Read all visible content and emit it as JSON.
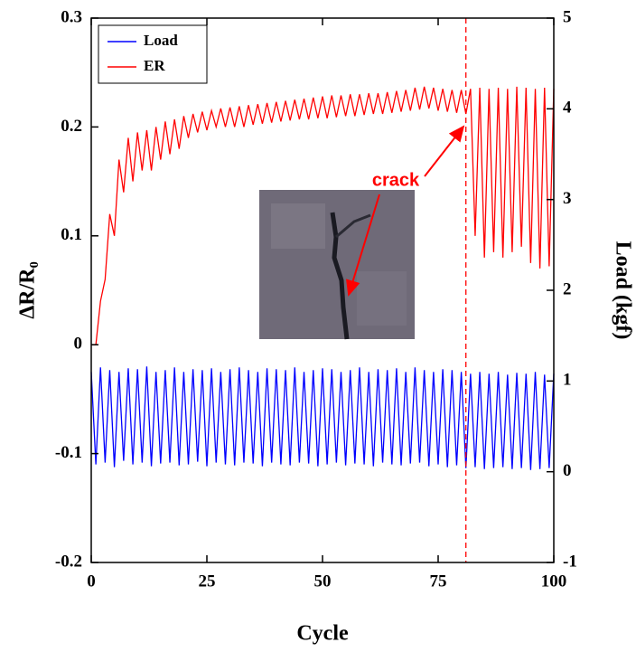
{
  "chart_data": {
    "type": "line",
    "xlabel": "Cycle",
    "ylabel": "ΔR/R₀",
    "y2label": "Load (kgf)",
    "xlim": [
      0,
      100
    ],
    "xticks": [
      0,
      25,
      50,
      75,
      100
    ],
    "ylim": [
      -0.2,
      0.3
    ],
    "yticks": [
      0.3,
      0.2,
      0.1,
      0,
      -0.1,
      -0.2
    ],
    "y2lim": [
      -1,
      5
    ],
    "y2ticks": [
      5,
      4,
      3,
      2,
      1,
      0,
      -1
    ],
    "legend": "upper left",
    "annotation": "crack",
    "crack_cycle": 81,
    "x": [
      0,
      1,
      2,
      3,
      4,
      5,
      6,
      7,
      8,
      9,
      10,
      11,
      12,
      13,
      14,
      15,
      16,
      17,
      18,
      19,
      20,
      21,
      22,
      23,
      24,
      25,
      26,
      27,
      28,
      29,
      30,
      31,
      32,
      33,
      34,
      35,
      36,
      37,
      38,
      39,
      40,
      41,
      42,
      43,
      44,
      45,
      46,
      47,
      48,
      49,
      50,
      51,
      52,
      53,
      54,
      55,
      56,
      57,
      58,
      59,
      60,
      61,
      62,
      63,
      64,
      65,
      66,
      67,
      68,
      69,
      70,
      71,
      72,
      73,
      74,
      75,
      76,
      77,
      78,
      79,
      80,
      81,
      82,
      83,
      84,
      85,
      86,
      87,
      88,
      89,
      90,
      91,
      92,
      93,
      94,
      95,
      96,
      97,
      98,
      99,
      100
    ],
    "series": [
      {
        "name": "Load",
        "color": "#0000ff",
        "axis": "y2",
        "values": [
          1.1,
          0.08,
          1.15,
          0.1,
          1.12,
          0.05,
          1.1,
          0.12,
          1.14,
          0.08,
          1.13,
          0.1,
          1.16,
          0.06,
          1.1,
          0.09,
          1.12,
          0.1,
          1.15,
          0.07,
          1.1,
          0.08,
          1.13,
          0.11,
          1.12,
          0.06,
          1.14,
          0.1,
          1.1,
          0.08,
          1.13,
          0.07,
          1.15,
          0.1,
          1.12,
          0.09,
          1.1,
          0.06,
          1.14,
          0.1,
          1.13,
          0.08,
          1.12,
          0.07,
          1.15,
          0.1,
          1.1,
          0.09,
          1.12,
          0.06,
          1.14,
          0.08,
          1.13,
          0.1,
          1.1,
          0.07,
          1.12,
          0.09,
          1.15,
          0.08,
          1.1,
          0.06,
          1.13,
          0.1,
          1.12,
          0.08,
          1.14,
          0.07,
          1.1,
          0.09,
          1.15,
          0.1,
          1.12,
          0.06,
          1.1,
          0.08,
          1.13,
          0.05,
          1.12,
          0.07,
          1.1,
          0.04,
          1.08,
          0.05,
          1.1,
          0.03,
          1.08,
          0.04,
          1.1,
          0.05,
          1.07,
          0.03,
          1.09,
          0.04,
          1.08,
          0.02,
          1.1,
          0.03,
          1.07,
          0.04,
          1.08
        ]
      },
      {
        "name": "ER",
        "color": "#ff0000",
        "values": [
          0,
          0,
          0.04,
          0.06,
          0.12,
          0.1,
          0.17,
          0.14,
          0.19,
          0.15,
          0.195,
          0.16,
          0.197,
          0.16,
          0.2,
          0.17,
          0.205,
          0.175,
          0.207,
          0.18,
          0.21,
          0.19,
          0.212,
          0.195,
          0.214,
          0.197,
          0.215,
          0.2,
          0.217,
          0.2,
          0.218,
          0.2,
          0.219,
          0.2,
          0.22,
          0.202,
          0.221,
          0.203,
          0.222,
          0.204,
          0.223,
          0.205,
          0.224,
          0.206,
          0.225,
          0.207,
          0.226,
          0.207,
          0.227,
          0.208,
          0.228,
          0.208,
          0.229,
          0.209,
          0.229,
          0.21,
          0.23,
          0.21,
          0.23,
          0.211,
          0.231,
          0.212,
          0.231,
          0.212,
          0.232,
          0.213,
          0.233,
          0.214,
          0.234,
          0.215,
          0.236,
          0.216,
          0.237,
          0.217,
          0.236,
          0.215,
          0.235,
          0.214,
          0.234,
          0.213,
          0.234,
          0.212,
          0.235,
          0.1,
          0.236,
          0.08,
          0.235,
          0.085,
          0.236,
          0.08,
          0.235,
          0.085,
          0.237,
          0.09,
          0.236,
          0.075,
          0.235,
          0.07,
          0.236,
          0.072,
          0.235
        ]
      }
    ]
  }
}
